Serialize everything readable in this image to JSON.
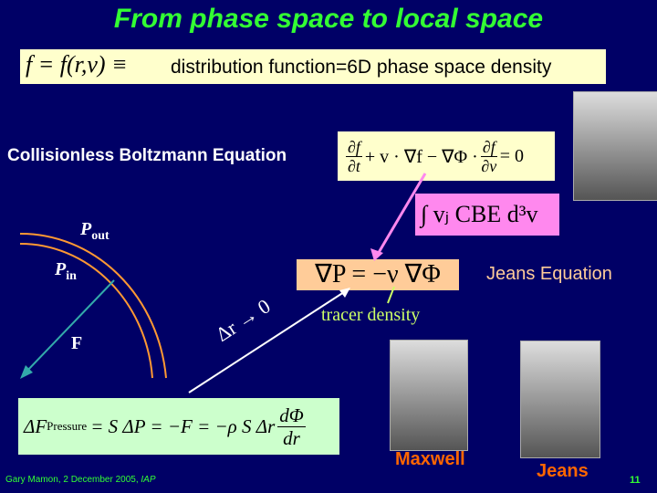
{
  "title": "From phase space to local space",
  "definition": {
    "math": "f = f(r,v) ≡",
    "text": "distribution function=6D phase space density"
  },
  "cbe": {
    "label": "Collisionless Boltzmann Equation",
    "df": "∂f",
    "dt": "∂t",
    "mid": "+ v · ∇f − ∇Φ ·",
    "dv": "∂v",
    "end": "= 0"
  },
  "integral": "∫ vⱼ CBE d³v",
  "jeans": {
    "equation": "∇P = −ν ∇Φ",
    "label": "Jeans Equation",
    "tracer": "tracer density"
  },
  "diagram": {
    "p_out": "P",
    "p_out_sub": "out",
    "p_in": "P",
    "p_in_sub": "in",
    "force": "F",
    "limit": "Δr → 0"
  },
  "pressure": {
    "lhs": "ΔF",
    "sub": "Pressure",
    "mid": "= S ΔP = −F = −ρ S Δr",
    "num": "dΦ",
    "den": "dr"
  },
  "people": {
    "maxwell": "Maxwell",
    "jeans": "Jeans"
  },
  "footer": {
    "text": "Gary Mamon, 2 December 2005, ",
    "org": "IAP",
    "page": "11"
  }
}
